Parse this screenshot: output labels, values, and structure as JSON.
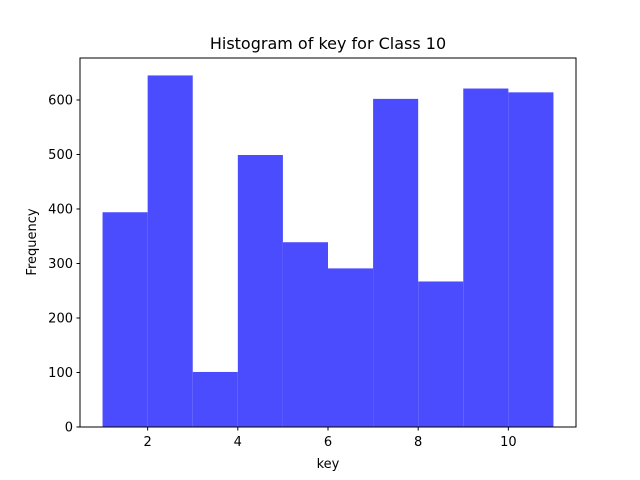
{
  "chart_data": {
    "type": "histogram",
    "title": "Histogram of key for Class 10",
    "x_label": "key",
    "y_label": "Frequency",
    "bins": [
      1,
      2,
      3,
      4,
      5,
      6,
      7,
      8,
      9,
      10,
      11
    ],
    "values": [
      394,
      645,
      101,
      499,
      339,
      291,
      602,
      267,
      621,
      614
    ],
    "color": "#4c4cff",
    "xlim": [
      0.5,
      11.5
    ],
    "xticks": [
      2,
      4,
      6,
      8,
      10
    ],
    "ylim": [
      0,
      677
    ],
    "yticks": [
      0,
      100,
      200,
      300,
      400,
      500,
      600
    ]
  }
}
